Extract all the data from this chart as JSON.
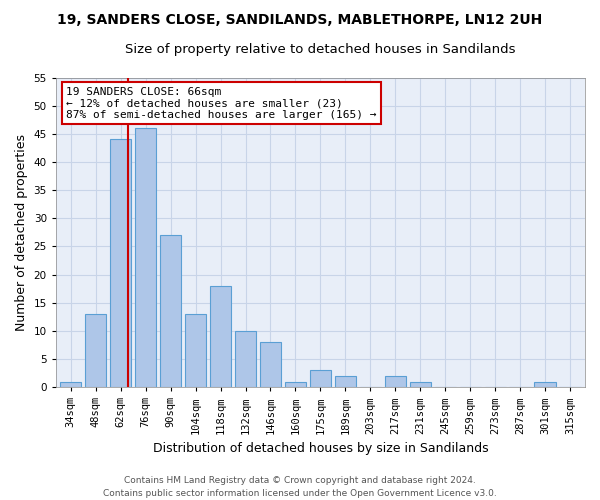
{
  "title": "19, SANDERS CLOSE, SANDILANDS, MABLETHORPE, LN12 2UH",
  "subtitle": "Size of property relative to detached houses in Sandilands",
  "xlabel": "Distribution of detached houses by size in Sandilands",
  "ylabel": "Number of detached properties",
  "bar_color": "#aec6e8",
  "bar_edge_color": "#5a9fd4",
  "categories": [
    "34sqm",
    "48sqm",
    "62sqm",
    "76sqm",
    "90sqm",
    "104sqm",
    "118sqm",
    "132sqm",
    "146sqm",
    "160sqm",
    "175sqm",
    "189sqm",
    "203sqm",
    "217sqm",
    "231sqm",
    "245sqm",
    "259sqm",
    "273sqm",
    "287sqm",
    "301sqm",
    "315sqm"
  ],
  "values": [
    1,
    13,
    44,
    46,
    27,
    13,
    18,
    10,
    8,
    1,
    3,
    2,
    0,
    2,
    1,
    0,
    0,
    0,
    0,
    1,
    0
  ],
  "vline_after_index": 2,
  "vline_color": "#cc0000",
  "annotation_text": "19 SANDERS CLOSE: 66sqm\n← 12% of detached houses are smaller (23)\n87% of semi-detached houses are larger (165) →",
  "annotation_box_color": "#ffffff",
  "annotation_box_edge_color": "#cc0000",
  "ylim": [
    0,
    55
  ],
  "yticks": [
    0,
    5,
    10,
    15,
    20,
    25,
    30,
    35,
    40,
    45,
    50,
    55
  ],
  "grid_color": "#c8d4e8",
  "background_color": "#e8eef8",
  "footer_text": "Contains HM Land Registry data © Crown copyright and database right 2024.\nContains public sector information licensed under the Open Government Licence v3.0.",
  "title_fontsize": 10,
  "subtitle_fontsize": 9.5,
  "xlabel_fontsize": 9,
  "ylabel_fontsize": 9,
  "tick_fontsize": 7.5,
  "annotation_fontsize": 8,
  "footer_fontsize": 6.5
}
